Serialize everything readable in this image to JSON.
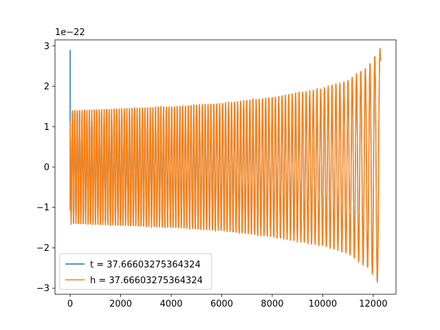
{
  "chart_data": {
    "type": "line",
    "title": "",
    "xlabel": "",
    "ylabel": "",
    "y_offset_label": "1e−22",
    "xlim": [
      -600,
      12900
    ],
    "ylim": [
      -3.15,
      3.15
    ],
    "grid": false,
    "legend_position": "lower left",
    "x_ticks": [
      0,
      2000,
      4000,
      6000,
      8000,
      10000,
      12000
    ],
    "x_tick_labels": [
      "0",
      "2000",
      "4000",
      "6000",
      "8000",
      "10000",
      "12000"
    ],
    "y_ticks": [
      -3,
      -2,
      -1,
      0,
      1,
      2,
      3
    ],
    "y_tick_labels": [
      "−3",
      "−2",
      "−1",
      "0",
      "1",
      "2",
      "3"
    ],
    "waveform": {
      "start_x": 0,
      "end_x": 12280,
      "cycles": 102,
      "envelope_x": [
        0,
        2000,
        4000,
        6000,
        8000,
        10000,
        11000,
        11800,
        12280
      ],
      "envelope_y": [
        1.4,
        1.45,
        1.5,
        1.58,
        1.73,
        1.95,
        2.15,
        2.5,
        2.95
      ]
    },
    "series": [
      {
        "name": "t = 37.66603275364324",
        "color": "#1f77b4",
        "initial_spike": 2.9,
        "initial_value": -1.08
      },
      {
        "name": "h = 37.66603275364324",
        "color": "#ff7f0e",
        "initial_value": -1.08
      }
    ]
  }
}
